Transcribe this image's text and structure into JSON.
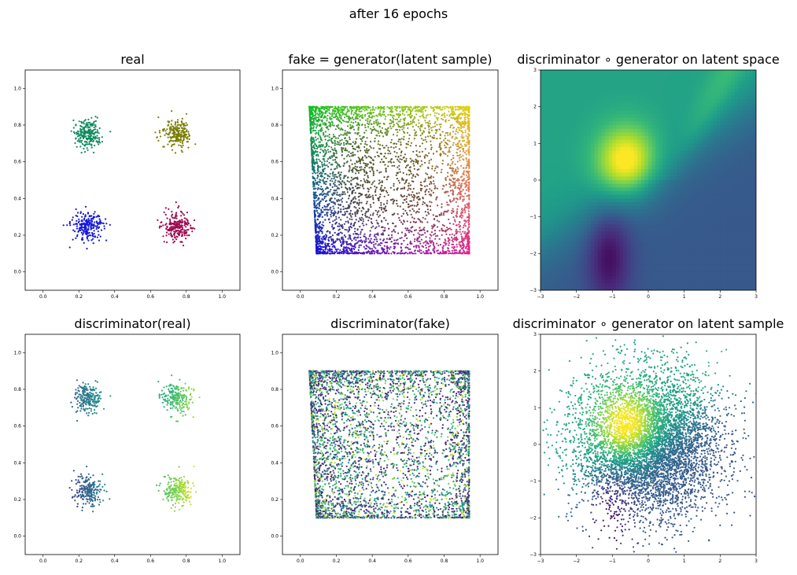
{
  "figure": {
    "title": "after 16 epochs"
  },
  "colormap": {
    "name": "viridis",
    "stops": [
      "#440154",
      "#482878",
      "#3e4989",
      "#31688e",
      "#26828e",
      "#1f9e89",
      "#35b779",
      "#6ece58",
      "#b5de2b",
      "#fde725"
    ]
  },
  "chart_data": [
    {
      "id": "real",
      "type": "scatter",
      "title": "real",
      "xlim": [
        -0.1,
        1.1
      ],
      "ylim": [
        -0.1,
        1.1
      ],
      "xticks": [
        "0.0",
        "0.2",
        "0.4",
        "0.6",
        "0.8",
        "1.0"
      ],
      "yticks": [
        "0.0",
        "0.2",
        "0.4",
        "0.6",
        "0.8",
        "1.0"
      ],
      "clusters": [
        {
          "center": [
            0.25,
            0.75
          ],
          "std": 0.04,
          "n": 220,
          "color": "#0f8a5e"
        },
        {
          "center": [
            0.75,
            0.75
          ],
          "std": 0.04,
          "n": 220,
          "color": "#7a7c05"
        },
        {
          "center": [
            0.25,
            0.25
          ],
          "std": 0.04,
          "n": 220,
          "color": "#1418d6"
        },
        {
          "center": [
            0.75,
            0.25
          ],
          "std": 0.04,
          "n": 220,
          "color": "#9c0a50"
        }
      ]
    },
    {
      "id": "fake",
      "type": "scatter",
      "title": "fake = generator(latent sample)",
      "xlim": [
        -0.1,
        1.1
      ],
      "ylim": [
        -0.1,
        1.1
      ],
      "xticks": [
        "0.0",
        "0.2",
        "0.4",
        "0.6",
        "0.8",
        "1.0"
      ],
      "yticks": [
        "0.0",
        "0.2",
        "0.4",
        "0.6",
        "0.8",
        "1.0"
      ],
      "region": {
        "x": [
          0.05,
          0.94
        ],
        "y": [
          0.1,
          0.9
        ],
        "top_left_x": 0.05,
        "bottom_left_x": 0.09,
        "n": 4200
      },
      "corner_colors": {
        "top_left": "#12c020",
        "top_right": "#e6d110",
        "bottom_left": "#1a10d8",
        "bottom_right": "#e0208a",
        "center": "#4a3a10"
      }
    },
    {
      "id": "d_of_g_latent_space",
      "type": "heatmap",
      "title": "discriminator ∘ generator on latent space",
      "xlim": [
        -3,
        3
      ],
      "ylim": [
        -3,
        3
      ],
      "xticks": [
        "−3",
        "−2",
        "−1",
        "0",
        "1",
        "2",
        "3"
      ],
      "yticks": [
        "−3",
        "−2",
        "−1",
        "0",
        "1",
        "2",
        "3"
      ],
      "colormap": "viridis",
      "peak": [
        -0.6,
        0.5
      ],
      "low_region": {
        "description_value": 0.05,
        "point": [
          -1.2,
          -2.0
        ]
      }
    },
    {
      "id": "d_real",
      "type": "scatter",
      "title": "discriminator(real)",
      "xlim": [
        -0.1,
        1.1
      ],
      "ylim": [
        -0.1,
        1.1
      ],
      "xticks": [
        "0.0",
        "0.2",
        "0.4",
        "0.6",
        "0.8",
        "1.0"
      ],
      "yticks": [
        "0.0",
        "0.2",
        "0.4",
        "0.6",
        "0.8",
        "1.0"
      ],
      "clusters": [
        {
          "center": [
            0.25,
            0.75
          ],
          "std": 0.04,
          "n": 220,
          "value": 0.42
        },
        {
          "center": [
            0.75,
            0.75
          ],
          "std": 0.04,
          "n": 220,
          "value": 0.72
        },
        {
          "center": [
            0.25,
            0.25
          ],
          "std": 0.04,
          "n": 220,
          "value": 0.32
        },
        {
          "center": [
            0.75,
            0.25
          ],
          "std": 0.04,
          "n": 220,
          "value": 0.82
        }
      ]
    },
    {
      "id": "d_fake",
      "type": "scatter",
      "title": "discriminator(fake)",
      "xlim": [
        -0.1,
        1.1
      ],
      "ylim": [
        -0.1,
        1.1
      ],
      "xticks": [
        "0.0",
        "0.2",
        "0.4",
        "0.6",
        "0.8",
        "1.0"
      ],
      "yticks": [
        "0.0",
        "0.2",
        "0.4",
        "0.6",
        "0.8",
        "1.0"
      ],
      "region": {
        "x": [
          0.05,
          0.94
        ],
        "y": [
          0.1,
          0.9
        ],
        "top_left_x": 0.05,
        "bottom_left_x": 0.09,
        "n": 4200
      },
      "colormap": "viridis"
    },
    {
      "id": "d_of_g_latent_sample",
      "type": "scatter",
      "title": "discriminator ∘ generator on latent sample",
      "xlim": [
        -3,
        3
      ],
      "ylim": [
        -3,
        3
      ],
      "xticks": [
        "−3",
        "−2",
        "−1",
        "0",
        "1",
        "2",
        "3"
      ],
      "yticks": [
        "−3",
        "−2",
        "−1",
        "0",
        "1",
        "2",
        "3"
      ],
      "distribution": {
        "mean": [
          0,
          0
        ],
        "std": 1.0,
        "n": 6000
      },
      "colormap": "viridis"
    }
  ]
}
